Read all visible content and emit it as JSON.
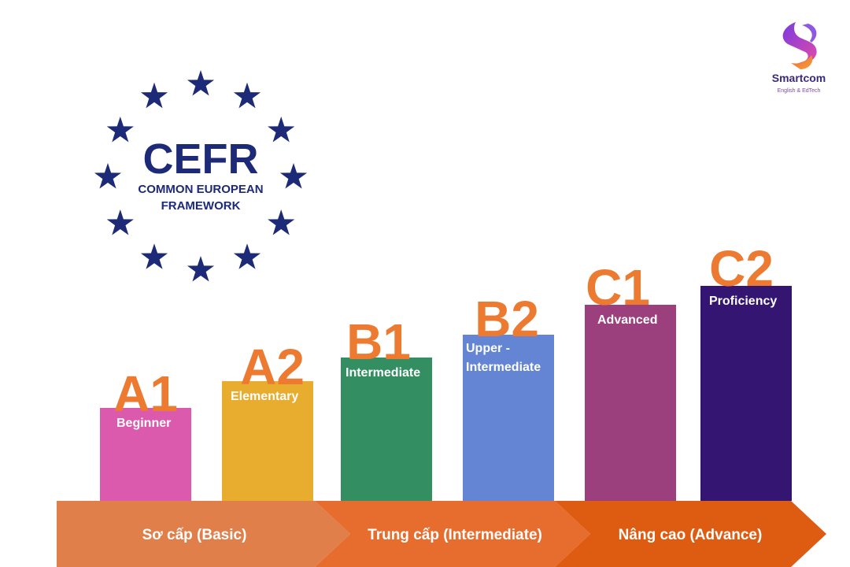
{
  "logo": {
    "acronym": "CEFR",
    "line1": "COMMON EUROPEAN",
    "line2": "FRAMEWORK",
    "star_color": "#1c2a78",
    "star_icon": "star-icon"
  },
  "brand": {
    "name": "Smartcom",
    "tagline": "English & EdTech",
    "icon": "smartcom-s-logo-icon"
  },
  "levels": [
    {
      "code": "A1",
      "label": "Beginner",
      "color": "#dc5aae"
    },
    {
      "code": "A2",
      "label": "Elementary",
      "color": "#e8ac2f"
    },
    {
      "code": "B1",
      "label": "Intermediate",
      "color": "#338f62"
    },
    {
      "code": "B2",
      "label": "Upper - Intermediate",
      "color": "#6385d4"
    },
    {
      "code": "C1",
      "label": "Advanced",
      "color": "#9c3f7d"
    },
    {
      "code": "C2",
      "label": "Proficiency",
      "color": "#341672"
    }
  ],
  "stages": [
    {
      "label": "Sơ cấp (Basic)",
      "color": "#e17f4b"
    },
    {
      "label": "Trung cấp (Intermediate)",
      "color": "#e76d2e"
    },
    {
      "label": "Nâng cao (Advance)",
      "color": "#de5c12"
    }
  ],
  "code_color": "#ec7a30"
}
